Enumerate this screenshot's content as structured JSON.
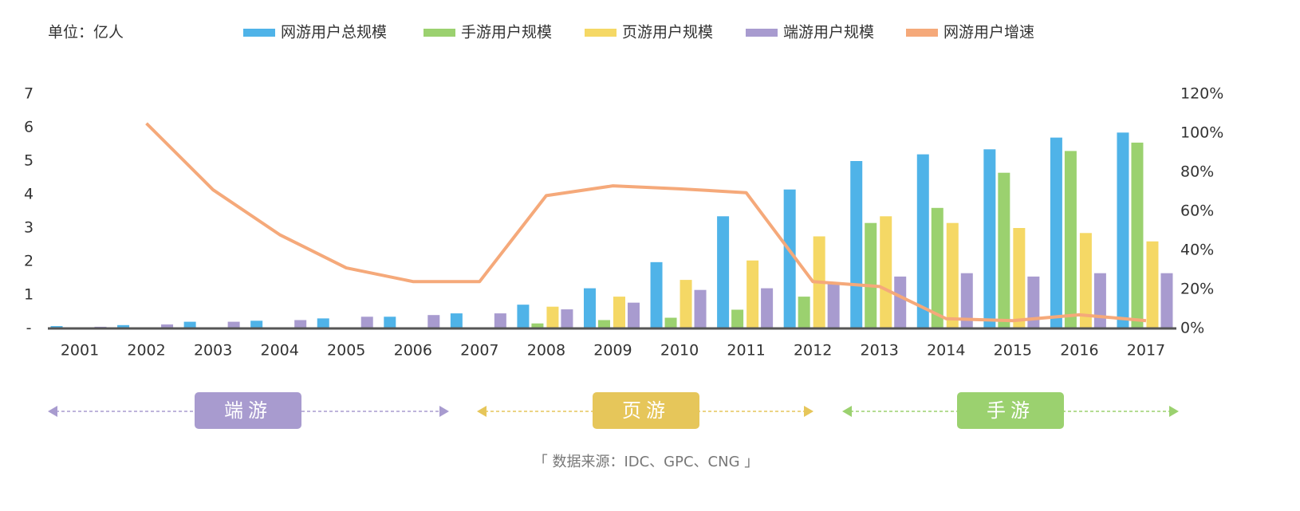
{
  "chart_data": {
    "type": "bar",
    "unit_label": "单位：亿人",
    "categories": [
      "2001",
      "2002",
      "2003",
      "2004",
      "2005",
      "2006",
      "2007",
      "2008",
      "2009",
      "2010",
      "2011",
      "2012",
      "2013",
      "2014",
      "2015",
      "2016",
      "2017"
    ],
    "series": [
      {
        "name": "网游用户总规模",
        "color": "#4fb3e8",
        "values": [
          0.07,
          0.1,
          0.2,
          0.23,
          0.3,
          0.35,
          0.45,
          0.71,
          1.2,
          1.98,
          3.35,
          4.15,
          5.0,
          5.2,
          5.35,
          5.7,
          5.85
        ]
      },
      {
        "name": "手游用户规模",
        "color": "#9bd16f",
        "values": [
          null,
          null,
          null,
          null,
          null,
          null,
          null,
          0.15,
          0.25,
          0.32,
          0.56,
          0.95,
          3.15,
          3.6,
          4.65,
          5.3,
          5.55
        ]
      },
      {
        "name": "页游用户规模",
        "color": "#f5d865",
        "values": [
          null,
          null,
          null,
          null,
          null,
          null,
          null,
          0.65,
          0.95,
          1.45,
          2.03,
          2.75,
          3.35,
          3.15,
          3.0,
          2.85,
          2.6
        ]
      },
      {
        "name": "端游用户规模",
        "color": "#a89bcf",
        "values": [
          0.05,
          0.12,
          0.2,
          0.25,
          0.35,
          0.4,
          0.45,
          0.57,
          0.77,
          1.15,
          1.2,
          1.35,
          1.55,
          1.65,
          1.55,
          1.65,
          1.65
        ]
      },
      {
        "name": "网游用户增速",
        "color": "#f5a97a",
        "type": "line",
        "axis": "y2",
        "values": [
          null,
          105,
          71,
          48,
          31,
          24,
          24,
          68,
          73,
          71.5,
          69.5,
          24,
          21.5,
          5,
          4,
          7,
          4
        ]
      }
    ],
    "ylim": [
      0,
      7
    ],
    "yticks": [
      {
        "value": 0,
        "label": "-"
      },
      1,
      2,
      3,
      4,
      5,
      6,
      7
    ],
    "y2lim": [
      0,
      120
    ],
    "y2ticks": [
      {
        "value": 0,
        "label": "0%"
      },
      {
        "value": 20,
        "label": "20%"
      },
      {
        "value": 40,
        "label": "40%"
      },
      {
        "value": 60,
        "label": "60%"
      },
      {
        "value": 80,
        "label": "80%"
      },
      {
        "value": 100,
        "label": "100%"
      },
      {
        "value": 120,
        "label": "120%"
      }
    ],
    "eras": [
      {
        "label": "端游",
        "color": "#a89bcf"
      },
      {
        "label": "页游",
        "color": "#e6c65a"
      },
      {
        "label": "手游",
        "color": "#9bd16f"
      }
    ],
    "source": "「 数据来源：IDC、GPC、CNG 」"
  }
}
